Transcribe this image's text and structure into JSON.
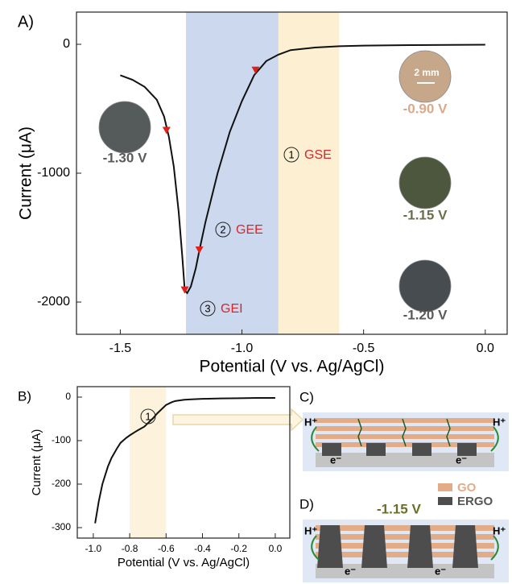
{
  "chart_data": [
    {
      "type": "line",
      "panel_label": "A)",
      "xlabel": "Potential (V vs. Ag/AgCl)",
      "ylabel": "Current (μA)",
      "xlim": [
        -1.68,
        0.09
      ],
      "ylim": [
        -2250,
        250
      ],
      "xticks": [
        -1.5,
        {
          "value": -1,
          "label": "-1.0"
        },
        -0.5,
        {
          "value": 0,
          "label": "0.0"
        }
      ],
      "yticks": [
        0,
        -1000,
        -2000
      ],
      "regions": [
        {
          "from": -1.23,
          "to": -0.85,
          "color": "#ccd8ee"
        },
        {
          "from": -0.85,
          "to": -0.6,
          "color": "#fdf0d2"
        }
      ],
      "series": [
        {
          "color": "#111111",
          "x": [
            -1.5,
            -1.45,
            -1.4,
            -1.35,
            -1.32,
            -1.3,
            -1.28,
            -1.26,
            -1.245,
            -1.235,
            -1.225,
            -1.21,
            -1.19,
            -1.175,
            -1.15,
            -1.1,
            -1.05,
            -1.0,
            -0.95,
            -0.9,
            -0.85,
            -0.8,
            -0.7,
            -0.6,
            -0.5,
            -0.3,
            0
          ],
          "values": [
            -240,
            -275,
            -330,
            -430,
            -560,
            -720,
            -950,
            -1300,
            -1650,
            -1910,
            -1930,
            -1880,
            -1740,
            -1600,
            -1380,
            -1000,
            -680,
            -440,
            -240,
            -130,
            -80,
            -45,
            -25,
            -15,
            -10,
            -6,
            -3
          ]
        },
        {
          "color": "#e0201b",
          "marker": "triangle-down",
          "x": [
            -1.31,
            -1.235,
            -1.175,
            -0.944
          ],
          "values": [
            -672,
            -1910,
            -1600,
            -205
          ]
        }
      ],
      "annotations": [
        {
          "number": "1",
          "text": "GSE"
        },
        {
          "number": "2",
          "text": "GEE"
        },
        {
          "number": "3",
          "text": "GEI"
        }
      ],
      "annotation_color": "#d8262a",
      "samples": [
        {
          "label": "-1.30 V",
          "color": "#545b5a",
          "label_color": "#5a5a5a"
        },
        {
          "label": "-0.90 V",
          "color": "#c7a78a",
          "label_color": "#dba98a"
        },
        {
          "label": "-1.15 V",
          "color": "#4d573e",
          "label_color": "#6b6e47"
        },
        {
          "label": "-1.20 V",
          "color": "#474c50",
          "label_color": "#5a5a5a"
        }
      ],
      "scale_bar": "2 mm"
    },
    {
      "type": "line",
      "panel_label": "B)",
      "xlabel": "Potential (V vs. Ag/AgCl)",
      "ylabel": "Current (μA)",
      "xlim": [
        -1.088,
        0.08
      ],
      "ylim": [
        -324,
        24
      ],
      "xticks": [
        {
          "value": -1,
          "label": "-1.0"
        },
        -0.8,
        -0.6,
        -0.4,
        -0.2,
        {
          "value": 0,
          "label": "0.0"
        }
      ],
      "yticks": [
        0,
        -100,
        -200,
        -300
      ],
      "regions": [
        {
          "from": -0.8,
          "to": -0.6,
          "color": "#fdf3dc"
        }
      ],
      "series": [
        {
          "color": "#111111",
          "x": [
            -0.99,
            -0.97,
            -0.95,
            -0.92,
            -0.9,
            -0.87,
            -0.85,
            -0.82,
            -0.8,
            -0.77,
            -0.75,
            -0.72,
            -0.7,
            -0.67,
            -0.65,
            -0.62,
            -0.6,
            -0.57,
            -0.55,
            -0.5,
            -0.45,
            -0.4,
            -0.3,
            -0.2,
            -0.1,
            0
          ],
          "values": [
            -290,
            -240,
            -200,
            -160,
            -140,
            -118,
            -105,
            -94,
            -88,
            -80,
            -75,
            -68,
            -60,
            -48,
            -38,
            -26,
            -18,
            -12,
            -9,
            -6,
            -5,
            -4,
            -3,
            -2.5,
            -2,
            -2
          ]
        }
      ],
      "annotations": [
        {
          "number": "1"
        }
      ]
    }
  ],
  "diagram": {
    "c_label": "C)",
    "d_label": "D)",
    "h_plus": "H⁺",
    "e_minus": "e⁻",
    "legend": [
      "GO",
      "ERGO"
    ],
    "potential": "-1.15 V"
  }
}
